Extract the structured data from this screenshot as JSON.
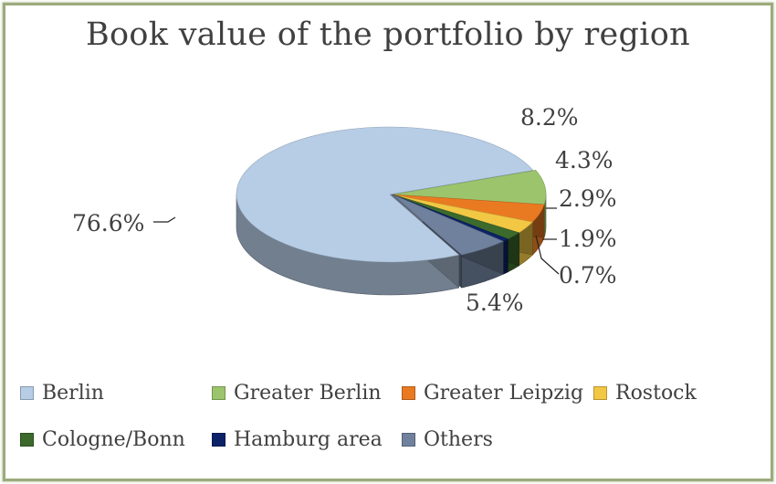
{
  "chart_data": {
    "type": "pie",
    "title": "Book value of the portfolio by region",
    "slices": [
      {
        "label": "Berlin",
        "value": 76.6,
        "value_label": "76.6%",
        "color": "#b7cde6"
      },
      {
        "label": "Greater Berlin",
        "value": 8.2,
        "value_label": "8.2%",
        "color": "#9cc46c"
      },
      {
        "label": "Greater Leipzig",
        "value": 4.3,
        "value_label": "4.3%",
        "color": "#ea7a22"
      },
      {
        "label": "Rostock",
        "value": 2.9,
        "value_label": "2.9%",
        "color": "#f2c744"
      },
      {
        "label": "Cologne/Bonn",
        "value": 1.9,
        "value_label": "1.9%",
        "color": "#3c6a2c"
      },
      {
        "label": "Hamburg area",
        "value": 0.7,
        "value_label": "0.7%",
        "color": "#0c2268"
      },
      {
        "label": "Others",
        "value": 5.4,
        "value_label": "5.4%",
        "color": "#6f819c"
      }
    ],
    "three_d": true,
    "exploded": true,
    "legend_position": "bottom"
  }
}
